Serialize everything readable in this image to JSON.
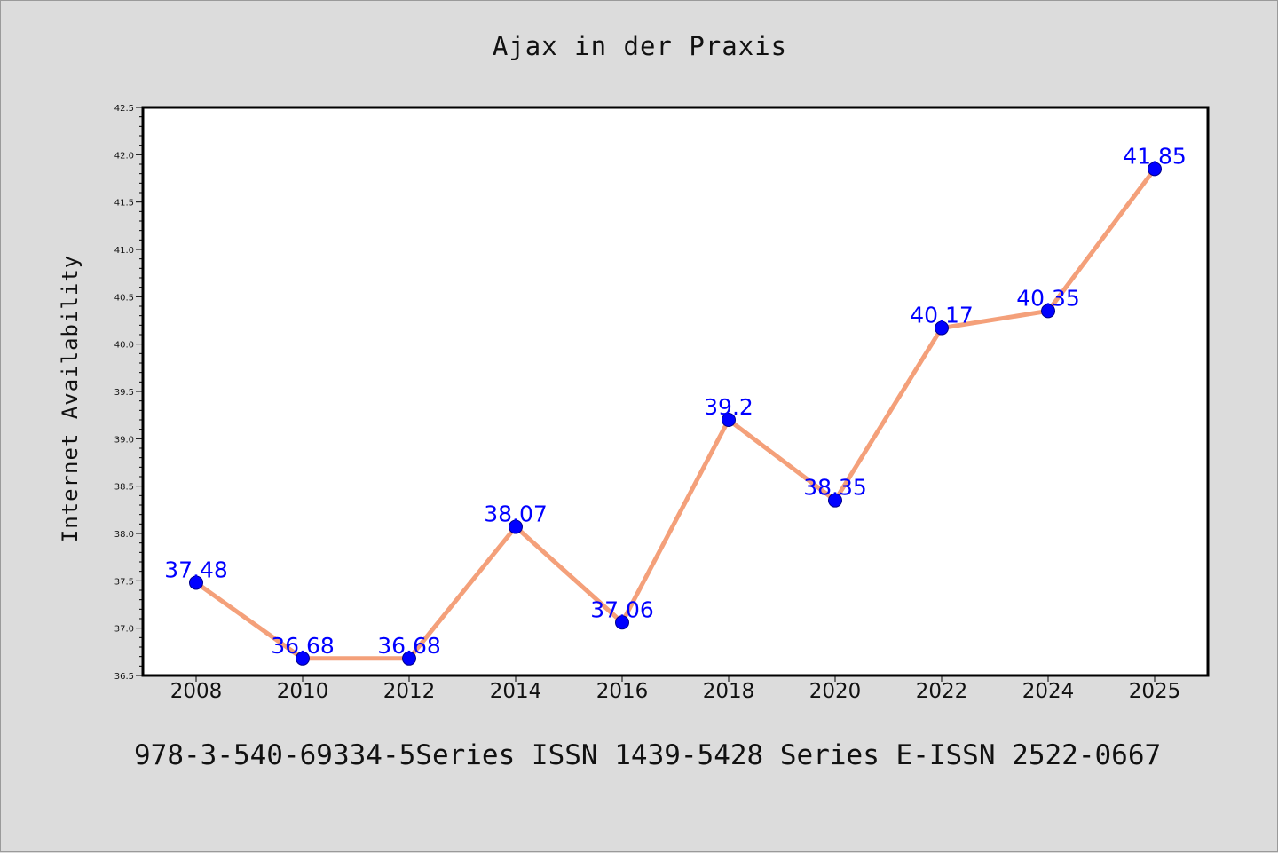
{
  "title": "Ajax in der Praxis",
  "footer": "978-3-540-69334-5Series ISSN 1439-5428 Series E-ISSN 2522-0667",
  "colors": {
    "background": "#dcdcdc",
    "plot_background": "#ffffff",
    "line": "#f4a07a",
    "marker": "#0000ff",
    "label": "#0000ff"
  },
  "chart_data": {
    "type": "line",
    "categories": [
      "2008",
      "2010",
      "2012",
      "2014",
      "2016",
      "2018",
      "2020",
      "2022",
      "2024",
      "2025"
    ],
    "values": [
      37.48,
      36.68,
      36.68,
      38.07,
      37.06,
      39.2,
      38.35,
      40.17,
      40.35,
      41.85
    ],
    "data_labels": [
      "37.48",
      "36.68",
      "36.68",
      "38.07",
      "37.06",
      "39.2",
      "38.35",
      "40.17",
      "40.35",
      "41.85"
    ],
    "title": "Ajax in der Praxis",
    "xlabel": "",
    "ylabel": "Internet Availability",
    "ylim": [
      36.5,
      42.5
    ],
    "yticks": [
      "36.5",
      "37.0",
      "37.5",
      "38.0",
      "38.5",
      "39.0",
      "39.5",
      "40.0",
      "40.5",
      "41.0",
      "41.5",
      "42.0",
      "42.5"
    ],
    "grid": false,
    "legend": "none"
  }
}
